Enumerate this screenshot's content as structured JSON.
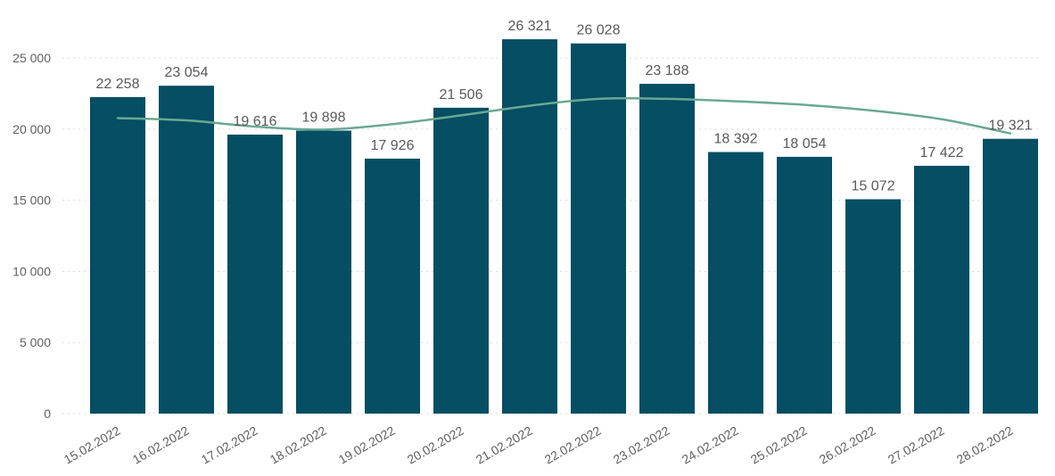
{
  "chart_data": {
    "type": "bar",
    "categories": [
      "15.02.2022",
      "16.02.2022",
      "17.02.2022",
      "18.02.2022",
      "19.02.2022",
      "20.02.2022",
      "21.02.2022",
      "22.02.2022",
      "23.02.2022",
      "24.02.2022",
      "25.02.2022",
      "26.02.2022",
      "27.02.2022",
      "28.02.2022"
    ],
    "series": [
      {
        "type": "bar",
        "values": [
          22258,
          23054,
          19616,
          19898,
          17926,
          21506,
          26321,
          26028,
          23188,
          18392,
          18054,
          15072,
          17422,
          19321
        ],
        "color": "#054e63"
      },
      {
        "type": "line",
        "values": [
          20780,
          20620,
          20180,
          19970,
          20350,
          20970,
          21650,
          22130,
          22130,
          21960,
          21710,
          21300,
          20700,
          19700
        ],
        "color": "#6aa893"
      }
    ],
    "data_labels": [
      "22 258",
      "23 054",
      "19 616",
      "19 898",
      "17 926",
      "21 506",
      "26 321",
      "26 028",
      "23 188",
      "18 392",
      "18 054",
      "15 072",
      "17 422",
      "19 321"
    ],
    "y_ticks": [
      {
        "value": 0,
        "label": "0"
      },
      {
        "value": 5000,
        "label": "5 000"
      },
      {
        "value": 10000,
        "label": "10 000"
      },
      {
        "value": 15000,
        "label": "15 000"
      },
      {
        "value": 20000,
        "label": "20 000"
      },
      {
        "value": 25000,
        "label": "25 000"
      }
    ],
    "ylim": [
      0,
      26700
    ],
    "grid": true,
    "x_label_rotation_deg": -30
  }
}
